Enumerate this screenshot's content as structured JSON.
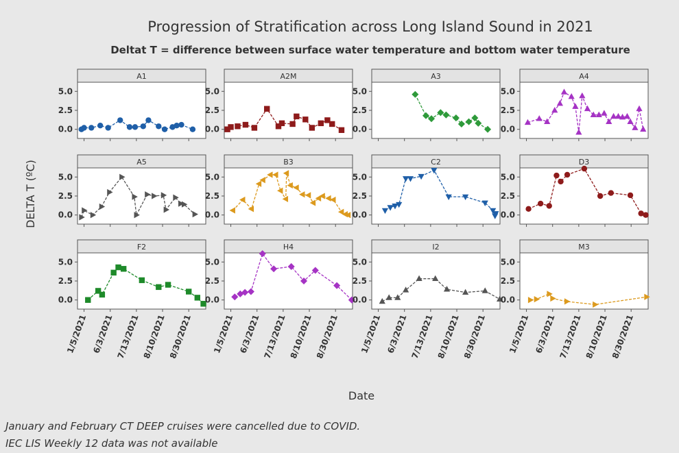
{
  "title": "Progression of Stratification across Long Island Sound in 2021",
  "subtitle": "Deltat T = difference between surface water temperature and bottom water temperature",
  "x_label": "Date",
  "y_label": "DELTA T (ºC)",
  "notes": [
    "January and February CT DEEP cruises were cancelled due to COVID.",
    "IEC LIS Weekly 12 data was not available"
  ],
  "xlim": [
    -2.5,
    46.5
  ],
  "xticks": [
    {
      "value": 0,
      "label": "1/5/2021"
    },
    {
      "value": 10,
      "label": "6/3/2021"
    },
    {
      "value": 20,
      "label": "7/13/2021"
    },
    {
      "value": 30,
      "label": "8/10/2021"
    },
    {
      "value": 40,
      "label": "8/30/2021"
    }
  ],
  "ylim": [
    -1.2,
    6.2
  ],
  "yticks": [
    {
      "value": 0,
      "label": "0.0"
    },
    {
      "value": 2.5,
      "label": "2.5"
    },
    {
      "value": 5,
      "label": "5.0"
    }
  ],
  "chart_data": [
    {
      "type": "line",
      "title": "A1",
      "color": "#1f5fa8",
      "marker": "circle",
      "x": [
        -1.0,
        0,
        2.8,
        6.2,
        9.2,
        13.8,
        17.4,
        19.5,
        22.6,
        24.6,
        28.5,
        30.8,
        33.8,
        35.4,
        37.2,
        41.5
      ],
      "values": [
        0.0,
        0.2,
        0.2,
        0.5,
        0.2,
        1.2,
        0.3,
        0.3,
        0.4,
        1.2,
        0.4,
        0.0,
        0.3,
        0.5,
        0.6,
        0.0
      ]
    },
    {
      "type": "line",
      "title": "A2M",
      "color": "#8e1b1b",
      "marker": "square",
      "x": [
        -1.3,
        0,
        2.6,
        5.6,
        9.0,
        13.8,
        18.2,
        19.5,
        23.6,
        25.1,
        28.5,
        31.0,
        34.4,
        36.9,
        38.7,
        42.3
      ],
      "values": [
        0.0,
        0.3,
        0.4,
        0.6,
        0.2,
        2.7,
        0.4,
        0.8,
        0.7,
        1.7,
        1.3,
        0.2,
        0.8,
        1.2,
        0.7,
        -0.1
      ]
    },
    {
      "type": "line",
      "title": "A3",
      "color": "#2e9a3a",
      "marker": "diamond",
      "x": [
        14.1,
        18.2,
        20.3,
        23.8,
        25.9,
        29.7,
        31.8,
        34.6,
        36.9,
        38.2,
        41.8
      ],
      "values": [
        4.6,
        1.8,
        1.4,
        2.2,
        1.9,
        1.5,
        0.7,
        1.0,
        1.5,
        0.8,
        0.0
      ]
    },
    {
      "type": "line",
      "title": "A4",
      "color": "#a533c4",
      "marker": "triangle-up",
      "x": [
        0.5,
        4.9,
        7.9,
        10.8,
        12.8,
        14.4,
        17.2,
        18.7,
        20.0,
        21.3,
        23.3,
        25.6,
        27.7,
        29.7,
        31.5,
        33.3,
        35.1,
        36.7,
        38.5,
        39.7,
        41.5,
        43.1,
        44.6
      ],
      "values": [
        0.9,
        1.4,
        1.0,
        2.5,
        3.4,
        4.9,
        4.3,
        3.0,
        -0.4,
        4.4,
        2.7,
        1.9,
        1.9,
        2.1,
        1.0,
        1.7,
        1.7,
        1.6,
        1.7,
        1.0,
        0.2,
        2.7,
        0.0
      ]
    },
    {
      "type": "line",
      "title": "A5",
      "color": "#555555",
      "marker": "triangle-right",
      "x": [
        -1.0,
        0,
        3.3,
        6.7,
        9.7,
        14.4,
        19.2,
        20.0,
        24.1,
        26.7,
        30.3,
        31.3,
        34.9,
        36.9,
        38.2,
        42.3
      ],
      "values": [
        -0.3,
        0.6,
        0.0,
        1.1,
        3.0,
        5.0,
        2.4,
        0.0,
        2.7,
        2.5,
        2.6,
        0.7,
        2.3,
        1.5,
        1.4,
        0.1
      ]
    },
    {
      "type": "line",
      "title": "B3",
      "color": "#dc9a1e",
      "marker": "triangle-left",
      "x": [
        0.8,
        4.6,
        7.9,
        10.8,
        12.3,
        15.1,
        17.2,
        19.0,
        21.0,
        21.3,
        22.8,
        25.1,
        27.4,
        29.7,
        31.5,
        33.6,
        35.1,
        37.4,
        39.2,
        42.3,
        43.8,
        44.9
      ],
      "values": [
        0.6,
        2.0,
        0.8,
        4.1,
        4.6,
        5.3,
        5.3,
        3.2,
        2.1,
        5.5,
        3.9,
        3.6,
        2.7,
        2.6,
        1.6,
        2.2,
        2.5,
        2.2,
        2.0,
        0.4,
        0.1,
        0.0
      ]
    },
    {
      "type": "line",
      "title": "C2",
      "color": "#1f5fa8",
      "marker": "triangle-down",
      "x": [
        2.6,
        4.6,
        6.4,
        7.9,
        10.5,
        12.3,
        16.4,
        21.3,
        26.9,
        33.3,
        40.8,
        43.8,
        44.6,
        44.9
      ],
      "values": [
        0.6,
        1.0,
        1.2,
        1.4,
        4.8,
        4.8,
        5.1,
        5.9,
        2.4,
        2.4,
        1.6,
        0.6,
        -0.1,
        0.2
      ]
    },
    {
      "type": "line",
      "title": "D3",
      "color": "#8e1b1b",
      "marker": "circle",
      "x": [
        0.8,
        5.4,
        8.7,
        11.5,
        13.1,
        15.6,
        22.1,
        28.2,
        32.3,
        39.7,
        43.8,
        45.6
      ],
      "values": [
        0.8,
        1.5,
        1.2,
        5.2,
        4.4,
        5.3,
        6.1,
        2.5,
        2.9,
        2.6,
        0.2,
        0.0
      ]
    },
    {
      "type": "line",
      "title": "F2",
      "color": "#1e8a2a",
      "marker": "square",
      "x": [
        1.5,
        5.4,
        6.9,
        11.3,
        13.1,
        15.1,
        22.1,
        28.5,
        32.1,
        40.0,
        43.3,
        45.6
      ],
      "values": [
        0.0,
        1.2,
        0.7,
        3.6,
        4.3,
        4.1,
        2.6,
        1.7,
        2.0,
        1.1,
        0.3,
        -0.5
      ]
    },
    {
      "type": "line",
      "title": "H4",
      "color": "#a533c4",
      "marker": "diamond",
      "x": [
        1.5,
        3.6,
        5.4,
        7.7,
        12.1,
        16.4,
        23.1,
        27.9,
        32.3,
        40.5,
        46.2
      ],
      "values": [
        0.4,
        0.8,
        1.0,
        1.1,
        6.1,
        4.1,
        4.4,
        2.5,
        3.9,
        1.9,
        0.0
      ]
    },
    {
      "type": "line",
      "title": "I2",
      "color": "#555555",
      "marker": "triangle-up",
      "x": [
        1.5,
        4.1,
        7.4,
        10.5,
        15.6,
        21.8,
        26.2,
        33.3,
        40.8,
        46.4
      ],
      "values": [
        -0.2,
        0.3,
        0.3,
        1.3,
        2.8,
        2.8,
        1.4,
        1.0,
        1.2,
        0.1
      ]
    },
    {
      "type": "line",
      "title": "M3",
      "color": "#dc9a1e",
      "marker": "triangle-right",
      "x": [
        1.5,
        3.8,
        8.7,
        10.0,
        15.4,
        26.2,
        45.9
      ],
      "values": [
        0.0,
        0.1,
        0.8,
        0.2,
        -0.2,
        -0.6,
        0.4
      ]
    }
  ]
}
